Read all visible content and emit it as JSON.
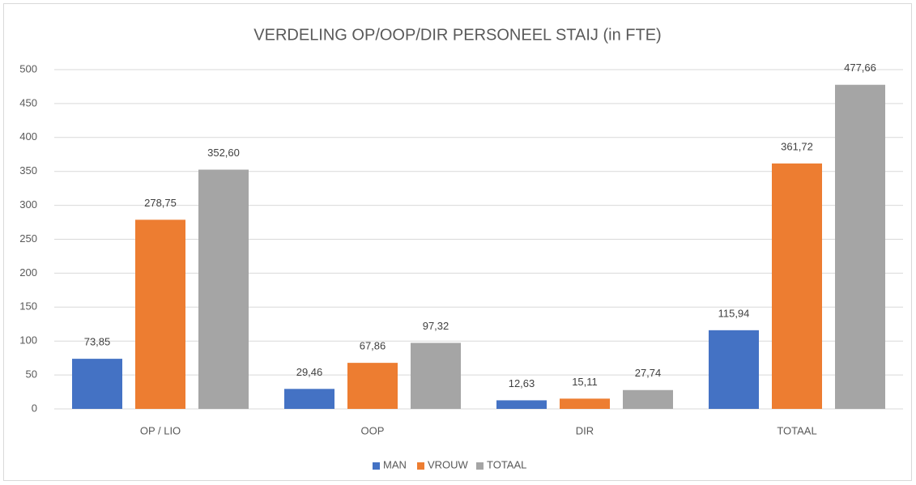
{
  "chart_data": {
    "type": "bar",
    "title": "VERDELING OP/OOP/DIR PERSONEEL STAIJ (in FTE)",
    "categories": [
      "OP / LIO",
      "OOP",
      "DIR",
      "TOTAAL"
    ],
    "series": [
      {
        "name": "MAN",
        "color": "#4472c4",
        "values": [
          73.85,
          29.46,
          12.63,
          115.94
        ],
        "value_labels": [
          "73,85",
          "29,46",
          "12,63",
          "115,94"
        ]
      },
      {
        "name": "VROUW",
        "color": "#ed7d31",
        "values": [
          278.75,
          67.86,
          15.11,
          361.72
        ],
        "value_labels": [
          "278,75",
          "67,86",
          "15,11",
          "361,72"
        ]
      },
      {
        "name": "TOTAAL",
        "color": "#a5a5a5",
        "values": [
          352.6,
          97.32,
          27.74,
          477.66
        ],
        "value_labels": [
          "352,60",
          "97,32",
          "27,74",
          "477,66"
        ]
      }
    ],
    "ylim": [
      0,
      500
    ],
    "yticks": [
      0,
      50,
      100,
      150,
      200,
      250,
      300,
      350,
      400,
      450,
      500
    ],
    "grid": true,
    "legend": "bottom"
  }
}
